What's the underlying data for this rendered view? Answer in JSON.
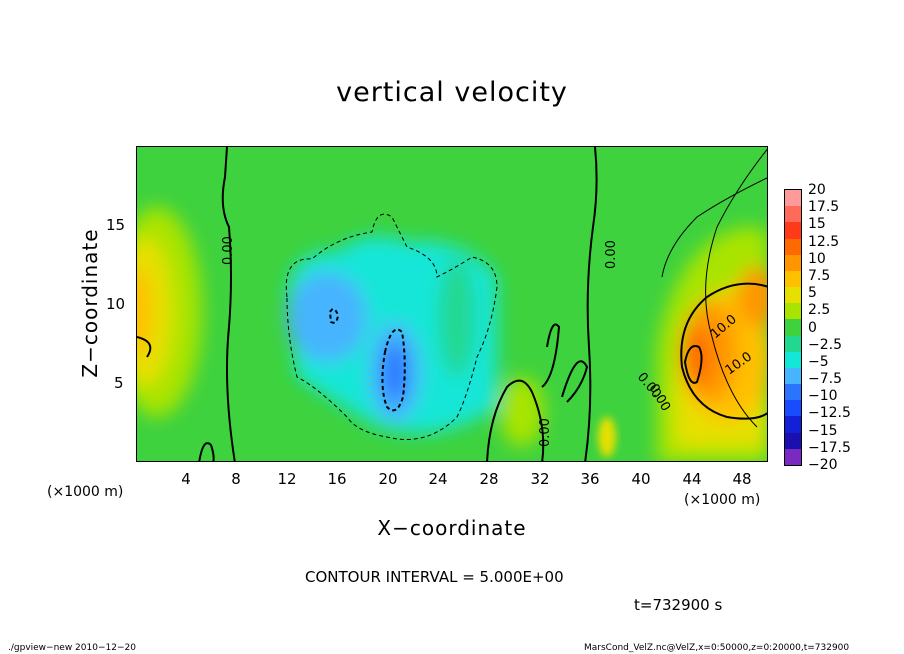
{
  "chart_data": {
    "type": "heatmap",
    "title": "vertical velocity",
    "xlabel": "X−coordinate",
    "ylabel": "Z−coordinate",
    "x_unit_left": "(×1000 m)",
    "x_unit_right": "(×1000 m)",
    "xlim": [
      0,
      50
    ],
    "ylim": [
      0,
      20
    ],
    "x_ticks": [
      4,
      8,
      12,
      16,
      20,
      24,
      28,
      32,
      36,
      40,
      44,
      48
    ],
    "y_ticks": [
      5,
      10,
      15
    ],
    "colorbar": {
      "labels": [
        "20",
        "17.5",
        "15",
        "12.5",
        "10",
        "7.5",
        "5",
        "2.5",
        "0",
        "−2.5",
        "−5",
        "−7.5",
        "−10",
        "−12.5",
        "−15",
        "−17.5",
        "−20"
      ],
      "colors": [
        "#ff9a9a",
        "#ff6a5a",
        "#ff3a1a",
        "#ff6a00",
        "#ff9600",
        "#ffc000",
        "#e6e000",
        "#a8e400",
        "#3ed23e",
        "#22d890",
        "#14e6d8",
        "#46b4ff",
        "#2a74ff",
        "#1a4cff",
        "#1420d8",
        "#1a10b0",
        "#7a2ac0"
      ]
    },
    "contour_labels": [
      "0.00",
      "0.00",
      "0.00",
      "0.00",
      "0.00",
      "10.0",
      "10.0"
    ],
    "contour_interval_text": "CONTOUR INTERVAL = 5.000E+00",
    "time_text": "t=732900  s",
    "grid": false,
    "legend_position": "right"
  },
  "footer": {
    "left": "./gpview−new   2010−12−20",
    "right": "MarsCond_VelZ.nc@VelZ,x=0:50000,z=0:20000,t=732900"
  }
}
